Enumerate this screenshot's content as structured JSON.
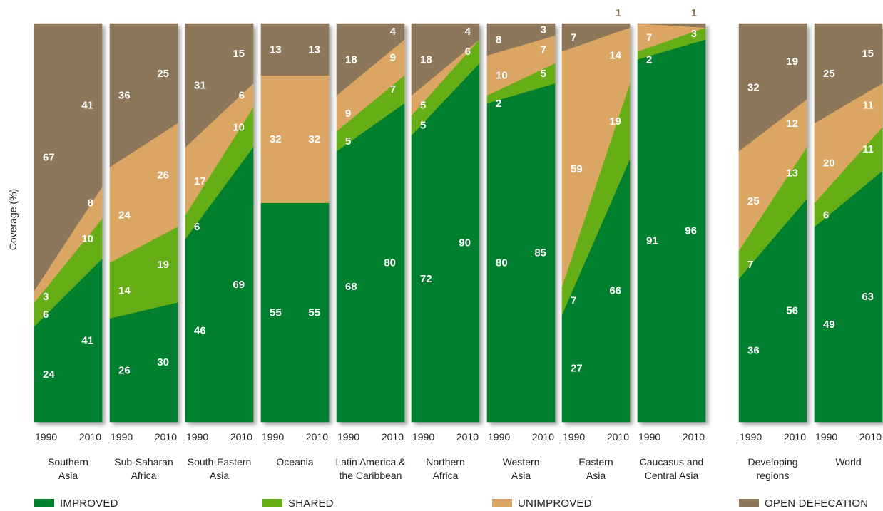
{
  "chart_data": {
    "type": "area",
    "ylabel": "Coverage (%)",
    "colors": {
      "improved": "#00802f",
      "shared": "#65ae13",
      "unimproved": "#dba663",
      "open_defecation": "#8c775a",
      "above_label": "#8c775a"
    },
    "legend": [
      {
        "key": "improved",
        "label": "IMPROVED"
      },
      {
        "key": "shared",
        "label": "SHARED"
      },
      {
        "key": "unimproved",
        "label": "UNIMPROVED"
      },
      {
        "key": "open_defecation",
        "label": "OPEN DEFECATION"
      }
    ],
    "years": [
      "1990",
      "2010"
    ],
    "regions": [
      {
        "name": "Southern\nAsia",
        "y1990": {
          "improved": 24,
          "shared": 6,
          "unimproved": 3,
          "open_defecation": 67
        },
        "y2010": {
          "improved": 41,
          "shared": 10,
          "unimproved": 8,
          "open_defecation": 41
        }
      },
      {
        "name": "Sub-Saharan\nAfrica",
        "y1990": {
          "improved": 26,
          "shared": 14,
          "unimproved": 24,
          "open_defecation": 36
        },
        "y2010": {
          "improved": 30,
          "shared": 19,
          "unimproved": 26,
          "open_defecation": 25
        }
      },
      {
        "name": "South-Eastern\nAsia",
        "y1990": {
          "improved": 46,
          "shared": 6,
          "unimproved": 17,
          "open_defecation": 31
        },
        "y2010": {
          "improved": 69,
          "shared": 10,
          "unimproved": 6,
          "open_defecation": 15
        }
      },
      {
        "name": "Oceania",
        "y1990": {
          "improved": 55,
          "shared": 0,
          "unimproved": 32,
          "open_defecation": 13
        },
        "y2010": {
          "improved": 55,
          "shared": 0,
          "unimproved": 32,
          "open_defecation": 13
        }
      },
      {
        "name": "Latin America &\nthe Caribbean",
        "y1990": {
          "improved": 68,
          "shared": 5,
          "unimproved": 9,
          "open_defecation": 18
        },
        "y2010": {
          "improved": 80,
          "shared": 7,
          "unimproved": 9,
          "open_defecation": 4
        }
      },
      {
        "name": "Northern\nAfrica",
        "y1990": {
          "improved": 72,
          "shared": 5,
          "unimproved": 5,
          "open_defecation": 18
        },
        "y2010": {
          "improved": 90,
          "shared": 6,
          "unimproved": 0,
          "open_defecation": 4
        }
      },
      {
        "name": "Western\nAsia",
        "y1990": {
          "improved": 80,
          "shared": 2,
          "unimproved": 10,
          "open_defecation": 8
        },
        "y2010": {
          "improved": 85,
          "shared": 5,
          "unimproved": 7,
          "open_defecation": 3
        }
      },
      {
        "name": "Eastern\nAsia",
        "y1990": {
          "improved": 27,
          "shared": 7,
          "unimproved": 59,
          "open_defecation": 7
        },
        "y2010": {
          "improved": 66,
          "shared": 19,
          "unimproved": 14,
          "open_defecation": 1
        }
      },
      {
        "name": "Caucasus and\nCentral Asia",
        "y1990": {
          "improved": 91,
          "shared": 2,
          "unimproved": 7,
          "open_defecation": 0
        },
        "y2010": {
          "improved": 96,
          "shared": 3,
          "unimproved": 0,
          "open_defecation": 1
        }
      },
      {
        "name": "Developing\nregions",
        "y1990": {
          "improved": 36,
          "shared": 7,
          "unimproved": 25,
          "open_defecation": 32
        },
        "y2010": {
          "improved": 56,
          "shared": 13,
          "unimproved": 12,
          "open_defecation": 19
        }
      },
      {
        "name": "World",
        "y1990": {
          "improved": 49,
          "shared": 6,
          "unimproved": 20,
          "open_defecation": 25
        },
        "y2010": {
          "improved": 63,
          "shared": 11,
          "unimproved": 11,
          "open_defecation": 15
        }
      }
    ]
  }
}
